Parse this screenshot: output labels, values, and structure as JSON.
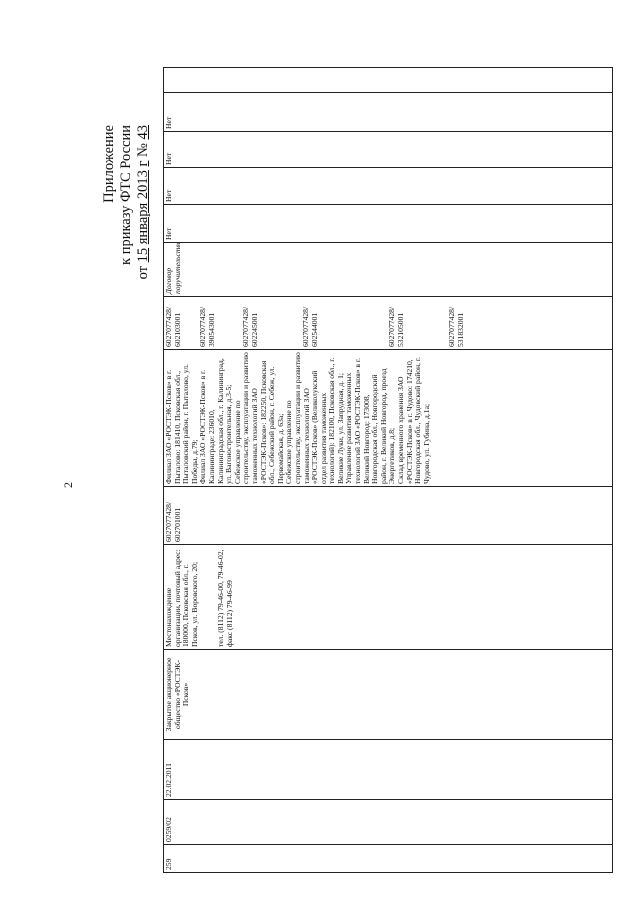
{
  "page_number": "2",
  "header": {
    "line1": "Приложение",
    "line2": "к приказу ФТС России",
    "line3_prefix": "от",
    "day": "15",
    "month_year": "января 2013",
    "g": "г",
    "number_sign": "№",
    "number": "43"
  },
  "row": {
    "index": "259",
    "reg_number": "0259/02",
    "date": "22.02.2011",
    "name": "Закрытое акционерное общество «РОСТЭК-Псков»",
    "address": "Местонахождение организации, почтовый адрес: 180000, Псковская обл., г. Псков, ул. Воровского, 20;",
    "phones": "тел. (8112) 79-46-00, 79-46-02, факс (8112) 79-46-99",
    "inn_kpp": "6027077428/ 602701001",
    "branches": [
      {
        "text": "Филиал ЗАО «РОСТЭК-Псков» в г. Пыталово: 181410, Псковская обл., Пыталовский район, г. Пыталово, ул. Победы, д.79;",
        "inn_kpp": "6027077428/ 602103001"
      },
      {
        "text": "Филиал ЗАО «РОСТЭК-Псков» в г. Калининграде: 236010, Калининградская обл., г. Калининград, ул. Вагоностроительная, д.3-5;",
        "inn_kpp": "6027077428/ 390543001"
      },
      {
        "text": "Себежское управление по строительству, эксплуатации и развитию таможенных технологий ЗАО «РОСТЭК-Псков»: 182250, Псковская обл., Себежский район, г. Себеж, ул. Первомайская, д. 63а;",
        "inn_kpp": "6027077428/ 602245001"
      },
      {
        "text": "Себежское управление по строительству, эксплуатации и развитию таможенных технологий ЗАО «РОСТЭК-Псков» (Великолукский отдел развития таможенных технологий): 182100, Псковская обл., г. Великие Луки, ул. Запрудная, д. 1;",
        "inn_kpp": "6027077428/ 602544001"
      },
      {
        "text": "Управление развития таможенных технологий ЗАО «РОСТЭК-Псков» в г. Великий Новгород: 173008, Новгородская обл., Новгородский район, г. Великий Новгород, проезд Энергетиков, д.8;",
        "inn_kpp": "6027077428/ 532105001"
      },
      {
        "text": "Склад временного хранения ЗАО «РОСТЭК-Псков» в г. Чудово: 174210, Новгородская обл., Чудовский район, г. Чудово, ул. Губина, д.1а;",
        "inn_kpp": "6027077428/ 531832001"
      }
    ],
    "guarantee": "Договор поручительства",
    "flags": [
      "Нет",
      "Нет",
      "Нет",
      "Нет"
    ],
    "last": ""
  }
}
